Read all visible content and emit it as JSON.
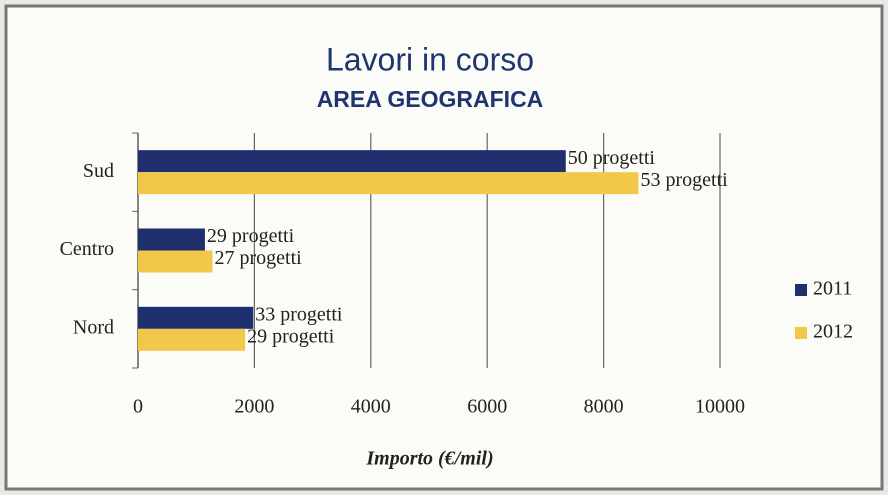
{
  "chart_data": {
    "type": "barh",
    "title": "Lavori in corso",
    "subtitle": "AREA GEOGRAFICA",
    "categories": [
      "Sud",
      "Centro",
      "Nord"
    ],
    "series": [
      {
        "name": "2011",
        "color": "#1f2f6e",
        "values": [
          7350,
          1150,
          1980
        ],
        "annotations": [
          "50 progetti",
          "29 progetti",
          "33 progetti"
        ]
      },
      {
        "name": "2012",
        "color": "#f2c84b",
        "values": [
          8600,
          1280,
          1840
        ],
        "annotations": [
          "53 progetti",
          "27 progetti",
          "29 progetti"
        ]
      }
    ],
    "xlim": [
      0,
      10000
    ],
    "xticks": [
      0,
      2000,
      4000,
      6000,
      8000,
      10000
    ],
    "xlabel": "Importo (€/mil)",
    "grid": true,
    "legend": "right"
  }
}
